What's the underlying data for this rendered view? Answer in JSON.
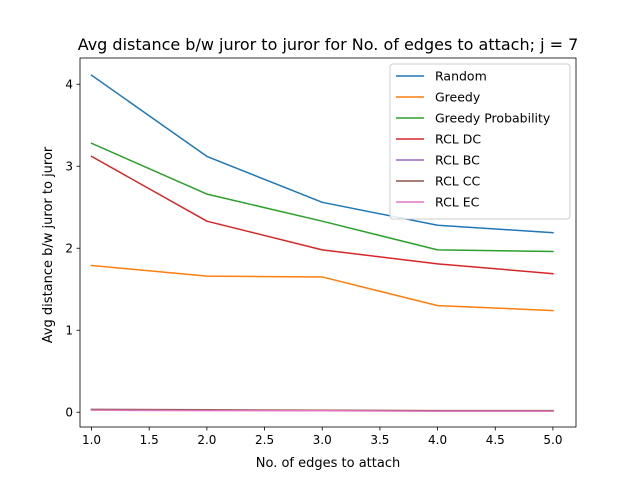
{
  "chart_data": {
    "type": "line",
    "title": "Avg distance b/w juror to juror for No. of edges to attach; j = 7",
    "xlabel": "No. of edges to attach",
    "ylabel": "Avg distance b/w juror to juror",
    "x": [
      1.0,
      2.0,
      3.0,
      4.0,
      5.0
    ],
    "xlim": [
      0.9,
      5.2
    ],
    "ylim": [
      -0.18,
      4.32
    ],
    "xticks": [
      "1.0",
      "1.5",
      "2.0",
      "2.5",
      "3.0",
      "3.5",
      "4.0",
      "4.5",
      "5.0"
    ],
    "xtick_values": [
      1.0,
      1.5,
      2.0,
      2.5,
      3.0,
      3.5,
      4.0,
      4.5,
      5.0
    ],
    "yticks": [
      "0",
      "1",
      "2",
      "3",
      "4"
    ],
    "ytick_values": [
      0,
      1,
      2,
      3,
      4
    ],
    "grid": false,
    "legend_position": "top-right",
    "series": [
      {
        "name": "Random",
        "color": "#1f77b4",
        "values": [
          4.11,
          3.12,
          2.56,
          2.28,
          2.19
        ]
      },
      {
        "name": "Greedy",
        "color": "#ff7f0e",
        "values": [
          1.79,
          1.66,
          1.65,
          1.3,
          1.24
        ]
      },
      {
        "name": "Greedy Probability",
        "color": "#2ca02c",
        "values": [
          3.28,
          2.66,
          2.33,
          1.98,
          1.96
        ]
      },
      {
        "name": "RCL DC",
        "color": "#d62728",
        "values": [
          3.12,
          2.33,
          1.98,
          1.81,
          1.69
        ]
      },
      {
        "name": "RCL BC",
        "color": "#9467bd",
        "values": [
          0.03,
          0.025,
          0.02,
          0.015,
          0.015
        ]
      },
      {
        "name": "RCL CC",
        "color": "#8c564b",
        "values": [
          0.035,
          0.03,
          0.025,
          0.02,
          0.02
        ]
      },
      {
        "name": "RCL EC",
        "color": "#e377c2",
        "values": [
          0.025,
          0.02,
          0.018,
          0.012,
          0.012
        ]
      }
    ]
  }
}
